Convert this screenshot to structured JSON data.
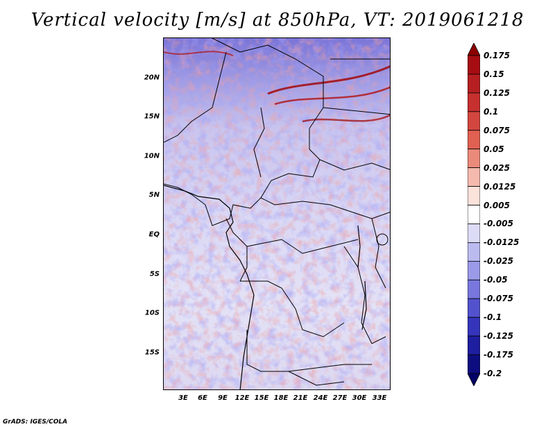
{
  "title": "Vertical velocity [m/s] at 850hPa, VT: 2019061218",
  "credit": "GrADS: IGES/COLA",
  "lat_labels": [
    "20N",
    "15N",
    "10N",
    "5N",
    "EQ",
    "5S",
    "10S",
    "15S"
  ],
  "lon_labels": [
    "3E",
    "6E",
    "9E",
    "12E",
    "15E",
    "18E",
    "21E",
    "24E",
    "27E",
    "30E",
    "33E"
  ],
  "colorbar": {
    "labels": [
      "0.175",
      "0.15",
      "0.125",
      "0.1",
      "0.075",
      "0.05",
      "0.025",
      "0.0125",
      "0.005",
      "-0.005",
      "-0.0125",
      "-0.025",
      "-0.05",
      "-0.075",
      "-0.1",
      "-0.125",
      "-0.175",
      "-0.2"
    ],
    "colors": [
      "#8b0000",
      "#a60d12",
      "#b61f22",
      "#c6302f",
      "#d3453f",
      "#e06052",
      "#e98a7a",
      "#f5b9ad",
      "#fbe3dc",
      "#ffffff",
      "#dcdcf7",
      "#bbbbf0",
      "#9a9ae8",
      "#7777dd",
      "#5252ce",
      "#3535bb",
      "#1e1ea0",
      "#0d0d80",
      "#000066"
    ]
  }
}
